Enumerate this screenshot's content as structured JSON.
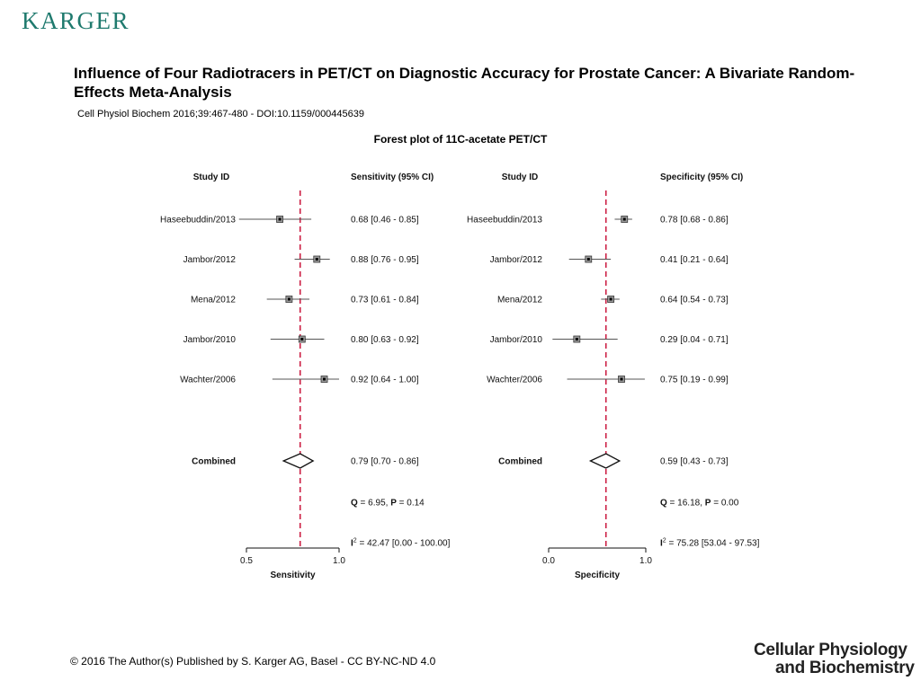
{
  "header": {
    "publisher_logo": "KARGER",
    "title": "Influence of Four Radiotracers in PET/CT on Diagnostic Accuracy for Prostate Cancer: A Bivariate Random-Effects Meta-Analysis",
    "citation": "Cell Physiol Biochem 2016;39:467-480 -  DOI:10.1159/000445639"
  },
  "figure": {
    "title": "Forest plot  of 11C-acetate PET/CT"
  },
  "chart_data": [
    {
      "type": "forest",
      "column_headers": {
        "study": "Study ID",
        "estimate": "Sensitivity (95% CI)"
      },
      "xlabel": "Sensitivity",
      "xlim": [
        0.5,
        1.0
      ],
      "x_ticks": [
        0.5,
        1.0
      ],
      "x_tick_labels": [
        "0.5",
        "1.0"
      ],
      "reference_line": 0.79,
      "reference_line_color": "#cc1f44",
      "studies": [
        {
          "label": "Haseebuddin/2013",
          "estimate": 0.68,
          "lower": 0.46,
          "upper": 0.85,
          "text": "0.68 [0.46 - 0.85]"
        },
        {
          "label": "Jambor/2012",
          "estimate": 0.88,
          "lower": 0.76,
          "upper": 0.95,
          "text": "0.88 [0.76 - 0.95]"
        },
        {
          "label": "Mena/2012",
          "estimate": 0.73,
          "lower": 0.61,
          "upper": 0.84,
          "text": "0.73 [0.61 - 0.84]"
        },
        {
          "label": "Jambor/2010",
          "estimate": 0.8,
          "lower": 0.63,
          "upper": 0.92,
          "text": "0.80 [0.63 - 0.92]"
        },
        {
          "label": "Wachter/2006",
          "estimate": 0.92,
          "lower": 0.64,
          "upper": 1.0,
          "text": "0.92 [0.64 - 1.00]"
        }
      ],
      "combined": {
        "label": "Combined",
        "estimate": 0.79,
        "lower": 0.7,
        "upper": 0.86,
        "text": "0.79 [0.70 - 0.86]"
      },
      "stats": {
        "q_label": "Q",
        "q_value": " = 6.95, ",
        "p_label": "P",
        "p_value": " = 0.14",
        "i2_label": "I",
        "i2_sup": "2",
        "i2_value": " = 42.47 [0.00 - 100.00]"
      }
    },
    {
      "type": "forest",
      "column_headers": {
        "study": "Study ID",
        "estimate": "Specificity (95% CI)"
      },
      "xlabel": "Specificity",
      "xlim": [
        0.0,
        1.0
      ],
      "x_ticks": [
        0.0,
        1.0
      ],
      "x_tick_labels": [
        "0.0",
        "1.0"
      ],
      "reference_line": 0.59,
      "reference_line_color": "#cc1f44",
      "studies": [
        {
          "label": "Haseebuddin/2013",
          "estimate": 0.78,
          "lower": 0.68,
          "upper": 0.86,
          "text": "0.78 [0.68 - 0.86]"
        },
        {
          "label": "Jambor/2012",
          "estimate": 0.41,
          "lower": 0.21,
          "upper": 0.64,
          "text": "0.41 [0.21 - 0.64]"
        },
        {
          "label": "Mena/2012",
          "estimate": 0.64,
          "lower": 0.54,
          "upper": 0.73,
          "text": "0.64 [0.54 - 0.73]"
        },
        {
          "label": "Jambor/2010",
          "estimate": 0.29,
          "lower": 0.04,
          "upper": 0.71,
          "text": "0.29 [0.04 - 0.71]"
        },
        {
          "label": "Wachter/2006",
          "estimate": 0.75,
          "lower": 0.19,
          "upper": 0.99,
          "text": "0.75 [0.19 - 0.99]"
        }
      ],
      "combined": {
        "label": "Combined",
        "estimate": 0.59,
        "lower": 0.43,
        "upper": 0.73,
        "text": "0.59 [0.43 - 0.73]"
      },
      "stats": {
        "q_label": "Q",
        "q_value": " = 16.18, ",
        "p_label": "P",
        "p_value": " = 0.00",
        "i2_label": "I",
        "i2_sup": "2",
        "i2_value": " = 75.28 [53.04 - 97.53]"
      }
    }
  ],
  "footer": {
    "copyright": "© 2016 The Author(s) Published by S. Karger AG, Basel - CC BY-NC-ND 4.0",
    "journal_line1": "Cellular Physiology",
    "journal_line2": "and Biochemistry"
  }
}
